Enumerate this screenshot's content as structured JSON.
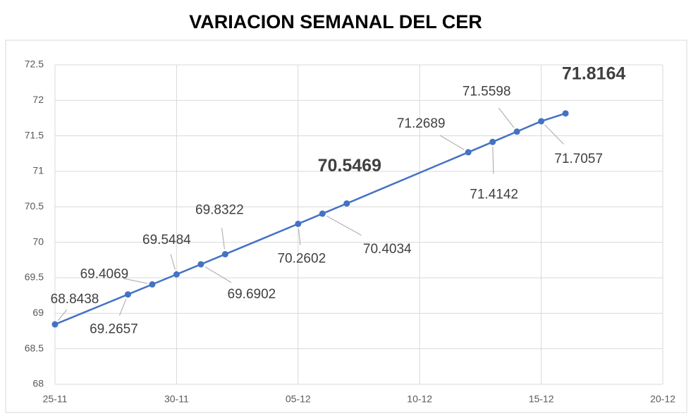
{
  "chart_data": {
    "type": "line",
    "title": "VARIACION SEMANAL DEL CER",
    "x": [
      "25-11",
      "28-11",
      "29-11",
      "30-11",
      "01-12",
      "02-12",
      "05-12",
      "06-12",
      "07-12",
      "12-12",
      "13-12",
      "14-12",
      "15-12",
      "16-12"
    ],
    "series": [
      {
        "color": "#4472c4",
        "values": [
          68.8438,
          69.2657,
          69.4069,
          69.5484,
          69.6902,
          69.8322,
          70.2602,
          70.4034,
          70.5469,
          71.2689,
          71.4142,
          71.5598,
          71.7057,
          71.8164
        ]
      }
    ],
    "emphasized_labels": [
      8,
      13
    ],
    "xlim": [
      "25-11",
      "20-12"
    ],
    "xticks": [
      "25-11",
      "30-11",
      "05-12",
      "10-12",
      "15-12",
      "20-12"
    ],
    "ylim": [
      68,
      72.5
    ],
    "yticks": [
      68,
      68.5,
      69,
      69.5,
      70,
      70.5,
      71,
      71.5,
      72,
      72.5
    ],
    "grid": true
  }
}
